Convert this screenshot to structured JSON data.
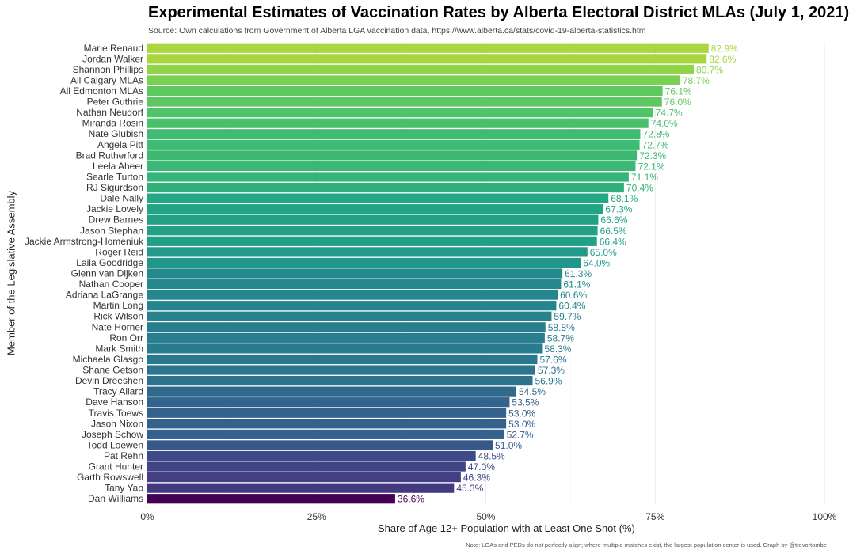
{
  "title": "Experimental Estimates of Vaccination Rates by Alberta Electoral District MLAs (July 1, 2021)",
  "subtitle": "Source: Own calculations from Government of Alberta LGA vaccination data, https://www.alberta.ca/stats/covid-19-alberta-statistics.htm",
  "caption": "Note: LGAs and PEDs do not perfectly align; where multiple matches exist, the largest population center is used. Graph by @trevortombe",
  "chart_data": {
    "type": "bar",
    "orientation": "horizontal",
    "xlabel": "Share of Age 12+ Population with at Least One Shot (%)",
    "ylabel": "Member of the Legislative Assembly",
    "xlim": [
      0,
      100
    ],
    "xticks": [
      0,
      25,
      50,
      75,
      100
    ],
    "xtick_labels": [
      "0%",
      "25%",
      "50%",
      "75%",
      "100%"
    ],
    "grid": "vertical",
    "color_scale": "viridis",
    "categories": [
      "Marie Renaud",
      "Jordan Walker",
      "Shannon Phillips",
      "All Calgary MLAs",
      "All Edmonton MLAs",
      "Peter Guthrie",
      "Nathan Neudorf",
      "Miranda Rosin",
      "Nate Glubish",
      "Angela Pitt",
      "Brad Rutherford",
      "Leela Aheer",
      "Searle Turton",
      "RJ Sigurdson",
      "Dale Nally",
      "Jackie Lovely",
      "Drew Barnes",
      "Jason Stephan",
      "Jackie Armstrong-Homeniuk",
      "Roger Reid",
      "Laila Goodridge",
      "Glenn van Dijken",
      "Nathan Cooper",
      "Adriana LaGrange",
      "Martin Long",
      "Rick Wilson",
      "Nate Horner",
      "Ron Orr",
      "Mark Smith",
      "Michaela Glasgo",
      "Shane Getson",
      "Devin Dreeshen",
      "Tracy Allard",
      "Dave Hanson",
      "Travis Toews",
      "Jason Nixon",
      "Joseph Schow",
      "Todd Loewen",
      "Pat Rehn",
      "Grant Hunter",
      "Garth Rowswell",
      "Tany Yao",
      "Dan Williams"
    ],
    "values": [
      82.9,
      82.6,
      80.7,
      78.7,
      76.1,
      76.0,
      74.7,
      74.0,
      72.8,
      72.7,
      72.3,
      72.1,
      71.1,
      70.4,
      68.1,
      67.3,
      66.6,
      66.5,
      66.4,
      65.0,
      64.0,
      61.3,
      61.1,
      60.6,
      60.4,
      59.7,
      58.8,
      58.7,
      58.3,
      57.6,
      57.3,
      56.9,
      54.5,
      53.5,
      53.0,
      53.0,
      52.7,
      51.0,
      48.5,
      47.0,
      46.3,
      45.3,
      36.6
    ],
    "value_labels": [
      "82.9%",
      "82.6%",
      "80.7%",
      "78.7%",
      "76.1%",
      "76.0%",
      "74.7%",
      "74.0%",
      "72.8%",
      "72.7%",
      "72.3%",
      "72.1%",
      "71.1%",
      "70.4%",
      "68.1%",
      "67.3%",
      "66.6%",
      "66.5%",
      "66.4%",
      "65.0%",
      "64.0%",
      "61.3%",
      "61.1%",
      "60.6%",
      "60.4%",
      "59.7%",
      "58.8%",
      "58.7%",
      "58.3%",
      "57.6%",
      "57.3%",
      "56.9%",
      "54.5%",
      "53.5%",
      "53.0%",
      "53.0%",
      "52.7%",
      "51.0%",
      "48.5%",
      "47.0%",
      "46.3%",
      "45.3%",
      "36.6%"
    ]
  }
}
